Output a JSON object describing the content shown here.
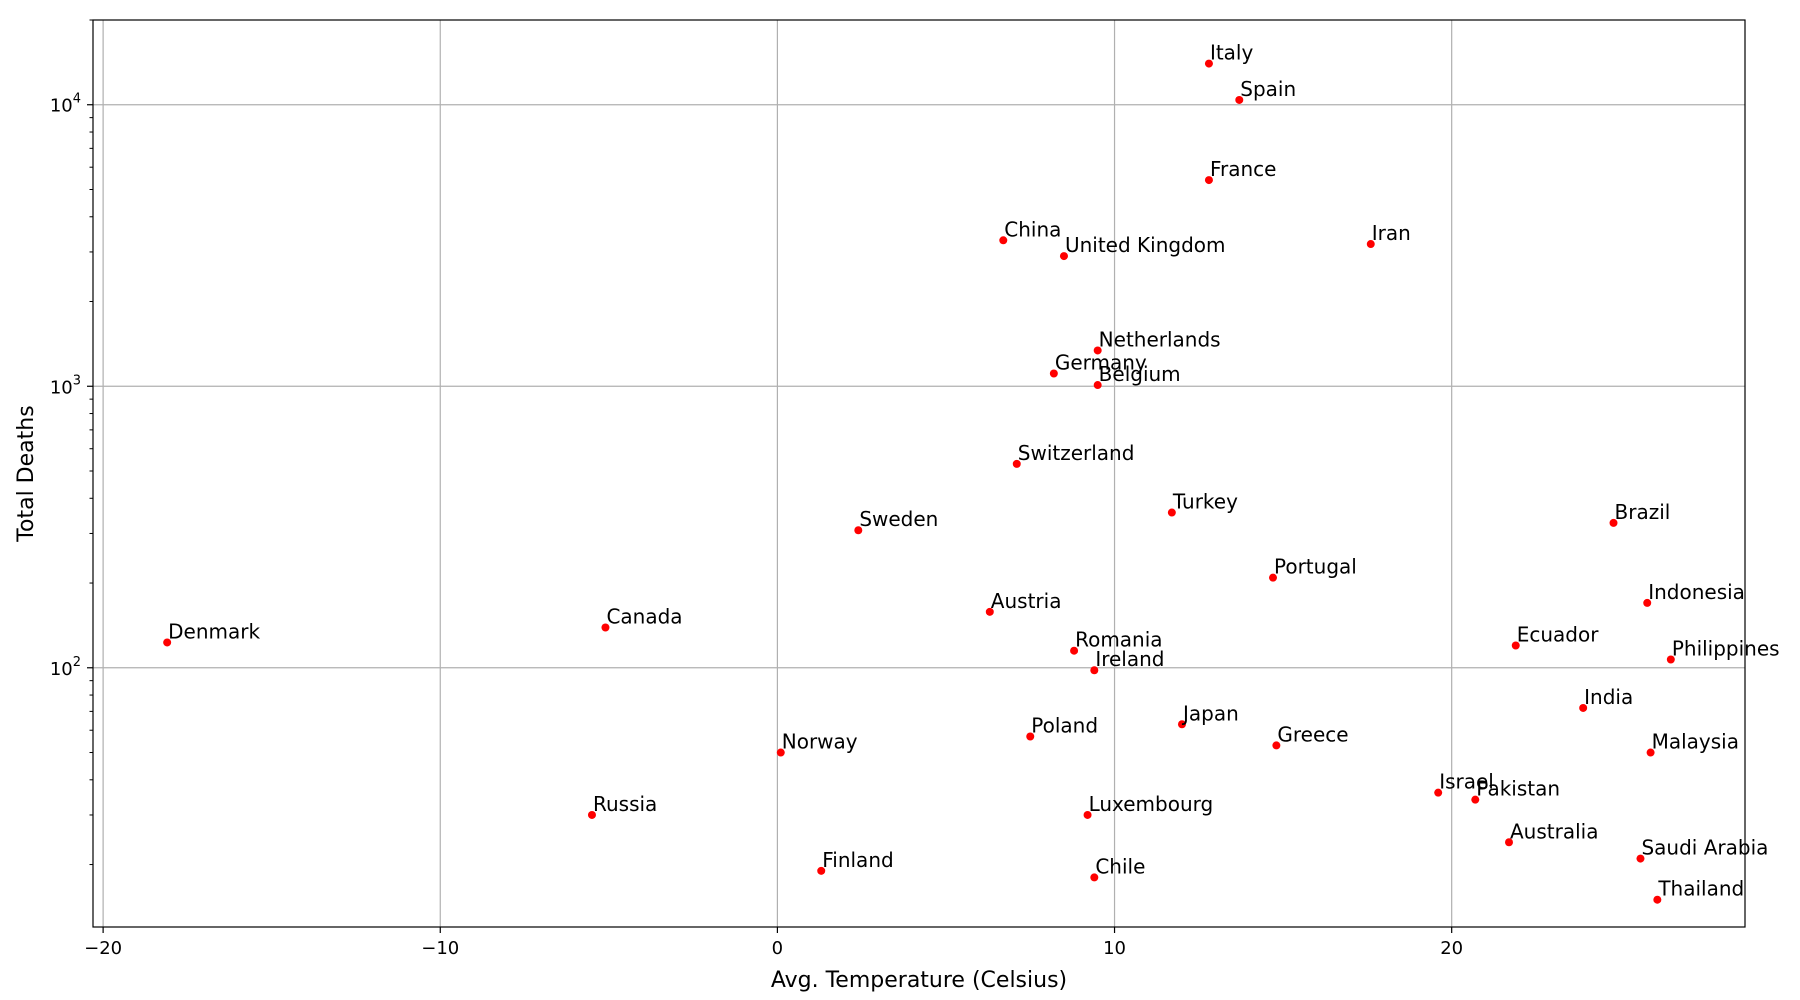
{
  "chart_data": {
    "type": "scatter",
    "title": "",
    "xlabel": "Avg. Temperature (Celsius)",
    "ylabel": "Total Deaths",
    "xlim": [
      -20.3,
      28.7
    ],
    "ylim": [
      12,
      20000
    ],
    "yscale": "log",
    "grid": true,
    "legend": "none",
    "x_ticks": [
      {
        "value": -20,
        "label": "−20"
      },
      {
        "value": -10,
        "label": "−10"
      },
      {
        "value": 0,
        "label": "0"
      },
      {
        "value": 10,
        "label": "10"
      },
      {
        "value": 20,
        "label": "20"
      }
    ],
    "y_ticks": [
      {
        "value": 100,
        "base": "10",
        "exp": "2"
      },
      {
        "value": 1000,
        "base": "10",
        "exp": "3"
      },
      {
        "value": 10000,
        "base": "10",
        "exp": "4"
      }
    ],
    "marker_color": "#ff0000",
    "points": [
      {
        "label": "Italy",
        "x": 12.8,
        "y": 14000
      },
      {
        "label": "Spain",
        "x": 13.7,
        "y": 10400
      },
      {
        "label": "France",
        "x": 12.8,
        "y": 5400
      },
      {
        "label": "China",
        "x": 6.7,
        "y": 3300
      },
      {
        "label": "United Kingdom",
        "x": 8.5,
        "y": 2900
      },
      {
        "label": "Iran",
        "x": 17.6,
        "y": 3200
      },
      {
        "label": "Netherlands",
        "x": 9.5,
        "y": 1340
      },
      {
        "label": "Germany",
        "x": 8.2,
        "y": 1110
      },
      {
        "label": "Belgium",
        "x": 9.5,
        "y": 1010
      },
      {
        "label": "Switzerland",
        "x": 7.1,
        "y": 530
      },
      {
        "label": "Turkey",
        "x": 11.7,
        "y": 356
      },
      {
        "label": "Brazil",
        "x": 24.8,
        "y": 327
      },
      {
        "label": "Sweden",
        "x": 2.4,
        "y": 308
      },
      {
        "label": "Portugal",
        "x": 14.7,
        "y": 209
      },
      {
        "label": "Indonesia",
        "x": 25.8,
        "y": 170
      },
      {
        "label": "Austria",
        "x": 6.3,
        "y": 158
      },
      {
        "label": "Canada",
        "x": -5.1,
        "y": 139
      },
      {
        "label": "Denmark",
        "x": -18.1,
        "y": 123
      },
      {
        "label": "Ecuador",
        "x": 21.9,
        "y": 120
      },
      {
        "label": "Romania",
        "x": 8.8,
        "y": 115
      },
      {
        "label": "Philippines",
        "x": 26.5,
        "y": 107
      },
      {
        "label": "Ireland",
        "x": 9.4,
        "y": 98
      },
      {
        "label": "India",
        "x": 23.9,
        "y": 72
      },
      {
        "label": "Japan",
        "x": 12.0,
        "y": 63
      },
      {
        "label": "Poland",
        "x": 7.5,
        "y": 57
      },
      {
        "label": "Greece",
        "x": 14.8,
        "y": 53
      },
      {
        "label": "Norway",
        "x": 0.1,
        "y": 50
      },
      {
        "label": "Malaysia",
        "x": 25.9,
        "y": 50
      },
      {
        "label": "Israel",
        "x": 19.6,
        "y": 36
      },
      {
        "label": "Pakistan",
        "x": 20.7,
        "y": 34
      },
      {
        "label": "Russia",
        "x": -5.5,
        "y": 30
      },
      {
        "label": "Luxembourg",
        "x": 9.2,
        "y": 30
      },
      {
        "label": "Australia",
        "x": 21.7,
        "y": 24
      },
      {
        "label": "Saudi Arabia",
        "x": 25.6,
        "y": 21
      },
      {
        "label": "Finland",
        "x": 1.3,
        "y": 19
      },
      {
        "label": "Chile",
        "x": 9.4,
        "y": 18
      },
      {
        "label": "Thailand",
        "x": 26.1,
        "y": 15
      }
    ]
  }
}
